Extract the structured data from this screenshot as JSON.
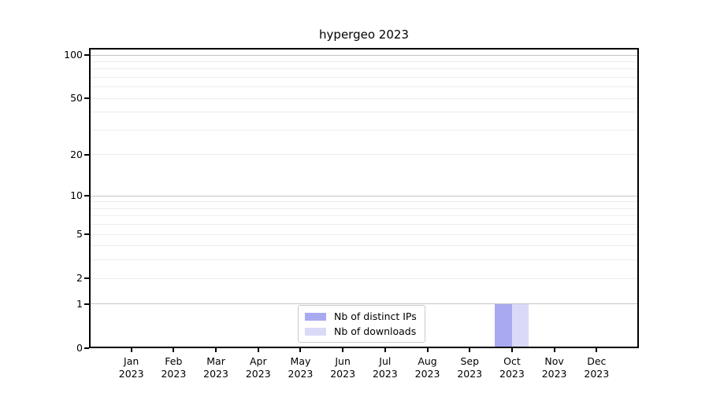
{
  "chart_data": {
    "type": "bar",
    "title": "hypergeo 2023",
    "categories": [
      {
        "month": "Jan",
        "year": "2023"
      },
      {
        "month": "Feb",
        "year": "2023"
      },
      {
        "month": "Mar",
        "year": "2023"
      },
      {
        "month": "Apr",
        "year": "2023"
      },
      {
        "month": "May",
        "year": "2023"
      },
      {
        "month": "Jun",
        "year": "2023"
      },
      {
        "month": "Jul",
        "year": "2023"
      },
      {
        "month": "Aug",
        "year": "2023"
      },
      {
        "month": "Sep",
        "year": "2023"
      },
      {
        "month": "Oct",
        "year": "2023"
      },
      {
        "month": "Nov",
        "year": "2023"
      },
      {
        "month": "Dec",
        "year": "2023"
      }
    ],
    "series": [
      {
        "name": "Nb of distinct IPs",
        "color": "#a9a9f2",
        "values": [
          0,
          0,
          0,
          0,
          0,
          0,
          0,
          0,
          0,
          1,
          0,
          0
        ]
      },
      {
        "name": "Nb of downloads",
        "color": "#dadaf8",
        "values": [
          0,
          0,
          0,
          0,
          0,
          0,
          0,
          0,
          0,
          1,
          0,
          0
        ]
      }
    ],
    "xlabel": "",
    "ylabel": "",
    "yscale": "log1p",
    "ylim": [
      0,
      112
    ],
    "yticks": [
      0,
      1,
      2,
      5,
      10,
      20,
      50,
      100
    ],
    "grid_major": [
      1,
      10,
      100
    ],
    "grid_minor": [
      2,
      3,
      4,
      5,
      6,
      7,
      8,
      9,
      20,
      30,
      40,
      50,
      60,
      70,
      80,
      90
    ],
    "grid": "on",
    "legend_position": "lower center (inside plot)",
    "colors": {
      "grid_major": "#c4c4c4",
      "grid_minor": "#ededed",
      "axis": "#000000",
      "text": "#000000",
      "background": "#ffffff",
      "legend_border": "#c9c9c9"
    }
  }
}
